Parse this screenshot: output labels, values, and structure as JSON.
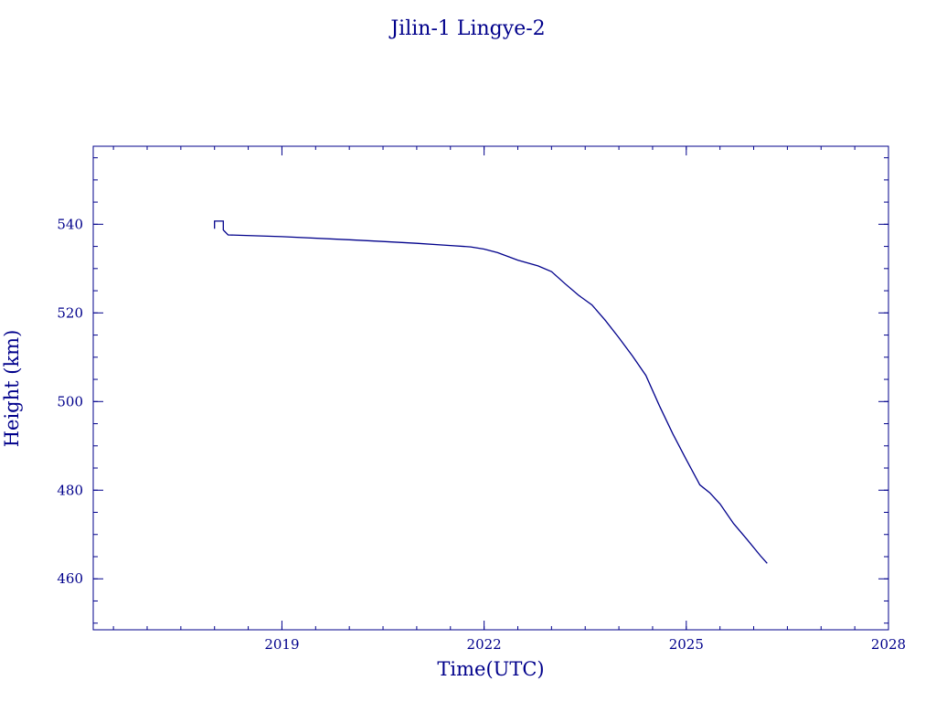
{
  "chart_data": {
    "type": "line",
    "title": "Jilin-1 Lingye-2",
    "xlabel": "Time(UTC)",
    "ylabel": "Height (km)",
    "xlim": [
      2016.2,
      2028.0
    ],
    "ylim": [
      448.5,
      557.6
    ],
    "x_ticks": [
      2019,
      2022,
      2025,
      2028
    ],
    "x_tick_labels": [
      "2019",
      "2022",
      "2025",
      "2028"
    ],
    "y_ticks": [
      460,
      480,
      500,
      520,
      540
    ],
    "y_tick_labels": [
      "460",
      "480",
      "500",
      "520",
      "540"
    ],
    "grid": false,
    "line_color": "#00008b",
    "series": [
      {
        "x": [
          2018.0,
          2018.0,
          2018.13,
          2018.13,
          2018.2,
          2019.0,
          2020.0,
          2020.5,
          2021.0,
          2021.5,
          2021.8,
          2022.0,
          2022.2,
          2022.5,
          2022.8,
          2023.0,
          2023.2,
          2023.4,
          2023.6,
          2023.8,
          2024.0,
          2024.2,
          2024.4,
          2024.6,
          2024.8,
          2025.0,
          2025.2,
          2025.35,
          2025.5,
          2025.7,
          2025.9,
          2026.1,
          2026.2
        ],
        "y": [
          539.0,
          540.7,
          540.7,
          538.7,
          537.6,
          537.2,
          536.5,
          536.1,
          535.7,
          535.2,
          534.9,
          534.4,
          533.6,
          531.9,
          530.6,
          529.3,
          526.6,
          524.0,
          521.8,
          518.3,
          514.4,
          510.3,
          505.9,
          499.1,
          492.7,
          486.9,
          481.2,
          479.4,
          476.9,
          472.5,
          468.9,
          465.2,
          463.5
        ]
      }
    ]
  }
}
